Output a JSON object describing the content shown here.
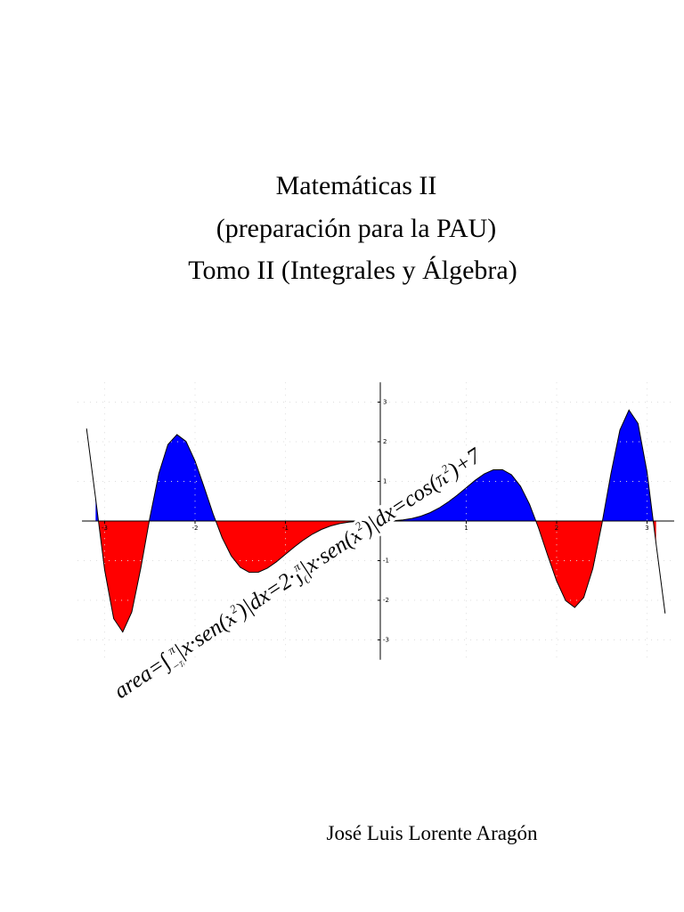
{
  "title_lines": [
    "Matemáticas II",
    "(preparación para la PAU)",
    "Tomo II (Integrales y Álgebra)"
  ],
  "author": "José Luis Lorente Aragón",
  "chart_data": {
    "type": "area",
    "x": [
      -3.2,
      -3.1,
      -3.0,
      -2.9,
      -2.8,
      -2.7,
      -2.6,
      -2.5,
      -2.4,
      -2.3,
      -2.2,
      -2.1,
      -2.0,
      -1.9,
      -1.8,
      -1.7,
      -1.6,
      -1.5,
      -1.4,
      -1.3,
      -1.2,
      -1.1,
      -1.0,
      -0.9,
      -0.8,
      -0.7,
      -0.6,
      -0.5,
      -0.4,
      -0.3,
      -0.2,
      -0.1,
      0,
      0.1,
      0.2,
      0.3,
      0.4,
      0.5,
      0.6,
      0.7,
      0.8,
      0.9,
      1.0,
      1.1,
      1.2,
      1.3,
      1.4,
      1.5,
      1.6,
      1.7,
      1.8,
      1.9,
      2.0,
      2.1,
      2.2,
      2.3,
      2.4,
      2.5,
      2.6,
      2.7,
      2.8,
      2.9,
      3.0,
      3.1,
      3.2
    ],
    "series": [
      {
        "color": "#000000",
        "fill_positive": "#0000ff",
        "fill_negative": "#ff0000",
        "values": [
          2.332,
          0.572,
          -1.236,
          -2.463,
          -2.8,
          -2.297,
          -1.187,
          0.083,
          1.203,
          1.929,
          2.181,
          2.009,
          1.514,
          0.859,
          0.177,
          -0.423,
          -0.878,
          -1.167,
          -1.295,
          -1.291,
          -1.19,
          -1.029,
          -0.841,
          -0.652,
          -0.478,
          -0.329,
          -0.211,
          -0.124,
          -0.064,
          -0.027,
          -0.008,
          -0.001,
          0,
          0.001,
          0.008,
          0.027,
          0.064,
          0.124,
          0.211,
          0.329,
          0.478,
          0.652,
          0.841,
          1.029,
          1.19,
          1.291,
          1.295,
          1.167,
          0.878,
          0.423,
          -0.177,
          -0.859,
          -1.514,
          -2.009,
          -2.181,
          -1.929,
          -1.203,
          -0.083,
          1.187,
          2.297,
          2.8,
          2.463,
          1.236,
          -0.572,
          -2.332
        ]
      }
    ],
    "xlim": [
      -3.3,
      3.3
    ],
    "ylim": [
      -3.5,
      3.5
    ],
    "xticks": [
      -3,
      -2,
      -1,
      1,
      2,
      3
    ],
    "yticks": [
      -3,
      -2,
      -1,
      1,
      2,
      3
    ],
    "annotation_parts": [
      {
        "text": "area=",
        "pos": "base"
      },
      {
        "text": "∫",
        "pos": "base"
      },
      {
        "text": "−π",
        "pos": "sub"
      },
      {
        "text": "π",
        "pos": "sup"
      },
      {
        "text": "|x·sen(x",
        "pos": "base"
      },
      {
        "text": "2",
        "pos": "sup"
      },
      {
        "text": ")|dx=2·",
        "pos": "base"
      },
      {
        "text": "∫",
        "pos": "base"
      },
      {
        "text": "0",
        "pos": "sub"
      },
      {
        "text": "π",
        "pos": "sup"
      },
      {
        "text": "|x·sen(x",
        "pos": "base"
      },
      {
        "text": "2",
        "pos": "sup"
      },
      {
        "text": ")|dx=cos(π",
        "pos": "base"
      },
      {
        "text": "2",
        "pos": "sup"
      },
      {
        "text": ")+7",
        "pos": "base"
      }
    ]
  }
}
